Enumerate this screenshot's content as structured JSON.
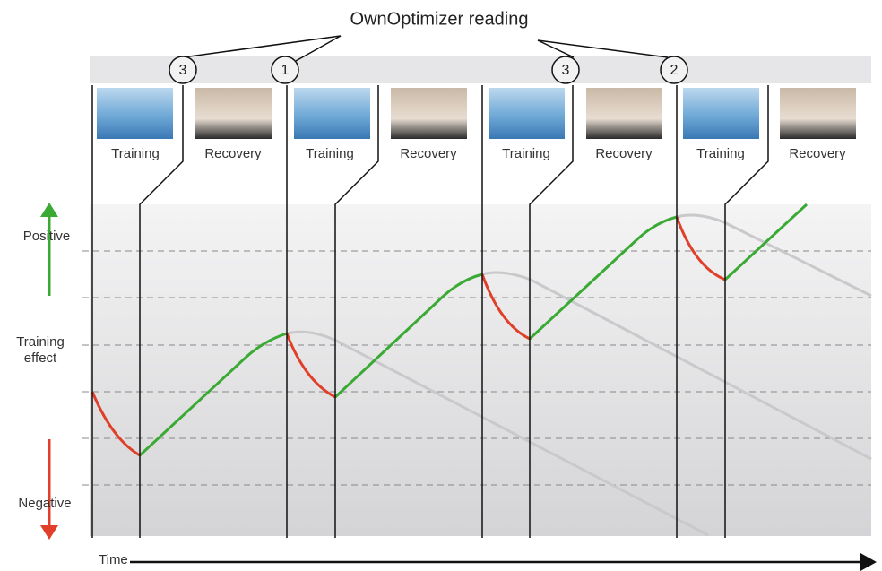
{
  "title": "OwnOptimizer reading",
  "markers": [
    "3",
    "1",
    "3",
    "2"
  ],
  "phases": [
    "Training",
    "Recovery",
    "Training",
    "Recovery",
    "Training",
    "Recovery",
    "Training",
    "Recovery"
  ],
  "axis": {
    "positive": "Positive",
    "effect": "Training effect",
    "negative": "Negative",
    "time": "Time"
  }
}
